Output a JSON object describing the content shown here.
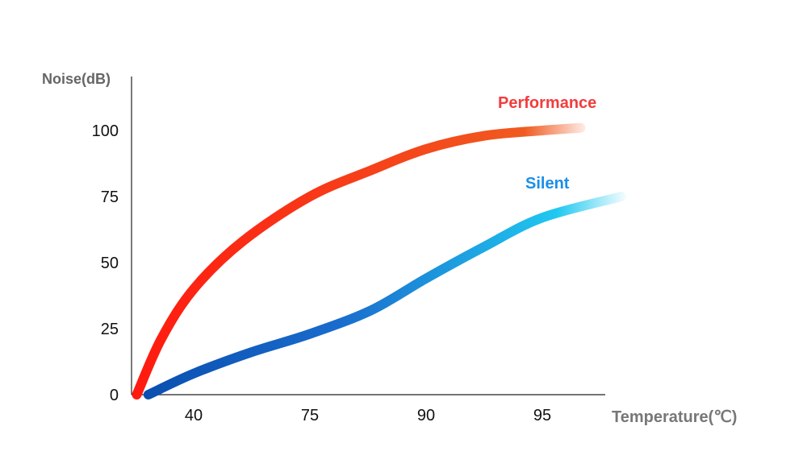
{
  "chart_data": {
    "type": "line",
    "title": "",
    "xlabel": "Temperature(℃)",
    "ylabel": "Noise(dB)",
    "x_ticks": [
      "40",
      "75",
      "90",
      "95"
    ],
    "x_note": "x values are positions along the categorical axis (1=40, 2=75, 3=90, 4=95)",
    "y_ticks": [
      0,
      25,
      50,
      75,
      100
    ],
    "ylim": [
      0,
      100
    ],
    "grid": false,
    "series": [
      {
        "name": "Performance",
        "color": "#f23c3c",
        "x": [
          0.51,
          0.72,
          1.0,
          1.42,
          2.0,
          2.53,
          3.0,
          3.5,
          4.0,
          4.33
        ],
        "y": [
          0,
          21,
          40,
          58,
          75,
          85,
          93,
          98,
          100,
          101
        ]
      },
      {
        "name": "Silent",
        "color": "#1a8fe8",
        "x": [
          0.61,
          1.0,
          1.49,
          2.0,
          2.53,
          3.0,
          3.5,
          4.0,
          4.68
        ],
        "y": [
          0,
          8,
          16,
          23,
          32,
          44,
          56,
          67,
          75
        ]
      }
    ]
  }
}
